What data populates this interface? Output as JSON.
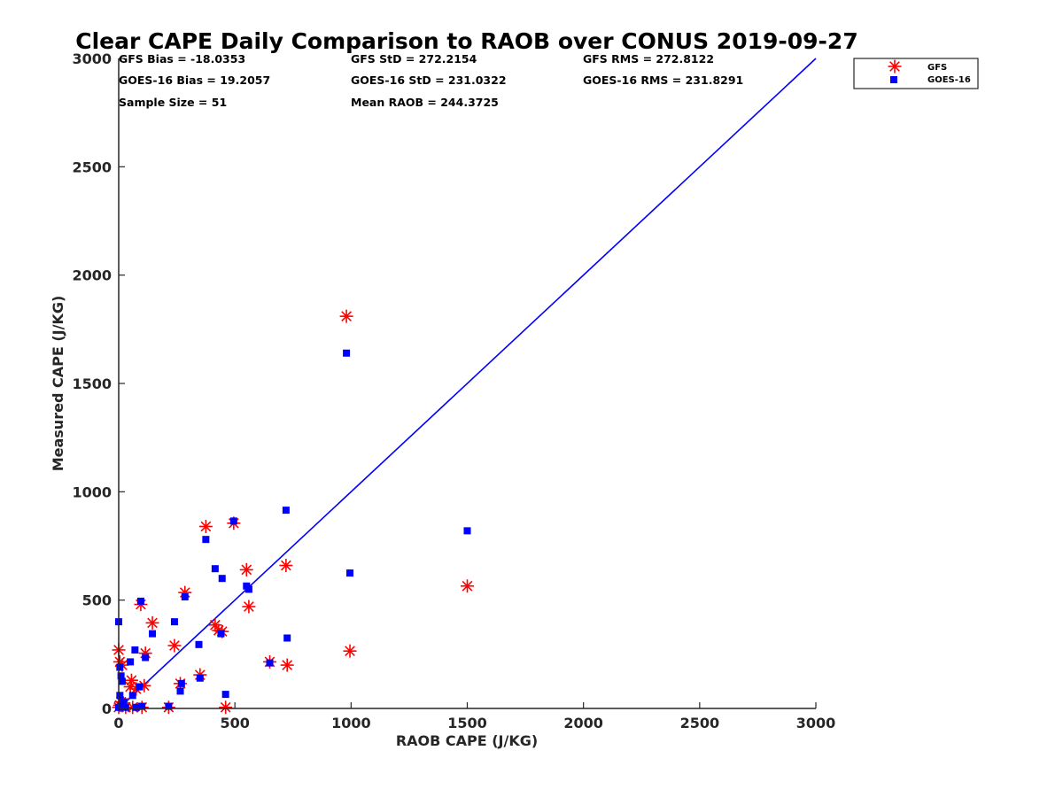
{
  "chart_data": {
    "type": "scatter",
    "title": "Clear CAPE Daily Comparison to RAOB over CONUS 2019-09-27",
    "xlabel": "RAOB CAPE (J/KG)",
    "ylabel": "Measured CAPE (J/KG)",
    "xlim": [
      0,
      3000
    ],
    "ylim": [
      0,
      3000
    ],
    "xticks": [
      0,
      500,
      1000,
      1500,
      2000,
      2500,
      3000
    ],
    "yticks": [
      0,
      500,
      1000,
      1500,
      2000,
      2500,
      3000
    ],
    "grid": false,
    "legend_position": "outside-top-right",
    "reference_line": {
      "x": [
        0,
        3000
      ],
      "y": [
        0,
        3000
      ],
      "color": "#0000ff"
    },
    "stats": [
      [
        "GFS Bias = -18.0353",
        "GFS StD = 272.2154",
        "GFS RMS = 272.8122"
      ],
      [
        "GOES-16 Bias = 19.2057",
        "GOES-16 StD = 231.0322",
        "GOES-16 RMS = 231.8291"
      ],
      [
        "Sample Size = 51",
        "Mean RAOB = 244.3725",
        ""
      ]
    ],
    "series": [
      {
        "name": "GFS",
        "marker": "asterisk",
        "color": "#ff0000",
        "points": [
          [
            980,
            1810
          ],
          [
            1500,
            565
          ],
          [
            995,
            265
          ],
          [
            720,
            660
          ],
          [
            725,
            200
          ],
          [
            650,
            215
          ],
          [
            560,
            470
          ],
          [
            550,
            640
          ],
          [
            495,
            855
          ],
          [
            375,
            840
          ],
          [
            460,
            5
          ],
          [
            445,
            355
          ],
          [
            430,
            360
          ],
          [
            415,
            385
          ],
          [
            350,
            155
          ],
          [
            285,
            535
          ],
          [
            265,
            115
          ],
          [
            240,
            290
          ],
          [
            215,
            5
          ],
          [
            145,
            395
          ],
          [
            115,
            255
          ],
          [
            110,
            105
          ],
          [
            100,
            5
          ],
          [
            95,
            480
          ],
          [
            75,
            90
          ],
          [
            55,
            130
          ],
          [
            50,
            100
          ],
          [
            60,
            5
          ],
          [
            30,
            5
          ],
          [
            20,
            25
          ],
          [
            15,
            200
          ],
          [
            5,
            215
          ],
          [
            0,
            270
          ],
          [
            0,
            5
          ],
          [
            5,
            15
          ],
          [
            10,
            30
          ]
        ]
      },
      {
        "name": "GOES-16",
        "marker": "square",
        "color": "#0000ff",
        "points": [
          [
            980,
            1640
          ],
          [
            1500,
            820
          ],
          [
            995,
            625
          ],
          [
            720,
            915
          ],
          [
            725,
            325
          ],
          [
            650,
            210
          ],
          [
            560,
            550
          ],
          [
            550,
            565
          ],
          [
            495,
            865
          ],
          [
            375,
            780
          ],
          [
            460,
            65
          ],
          [
            445,
            600
          ],
          [
            440,
            345
          ],
          [
            415,
            645
          ],
          [
            350,
            140
          ],
          [
            345,
            295
          ],
          [
            285,
            515
          ],
          [
            265,
            80
          ],
          [
            270,
            115
          ],
          [
            240,
            400
          ],
          [
            215,
            10
          ],
          [
            145,
            345
          ],
          [
            115,
            235
          ],
          [
            100,
            10
          ],
          [
            95,
            495
          ],
          [
            90,
            100
          ],
          [
            70,
            270
          ],
          [
            60,
            60
          ],
          [
            75,
            5
          ],
          [
            50,
            215
          ],
          [
            30,
            5
          ],
          [
            20,
            30
          ],
          [
            15,
            125
          ],
          [
            10,
            150
          ],
          [
            5,
            190
          ],
          [
            5,
            60
          ],
          [
            0,
            400
          ],
          [
            0,
            5
          ],
          [
            10,
            10
          ]
        ]
      }
    ]
  }
}
